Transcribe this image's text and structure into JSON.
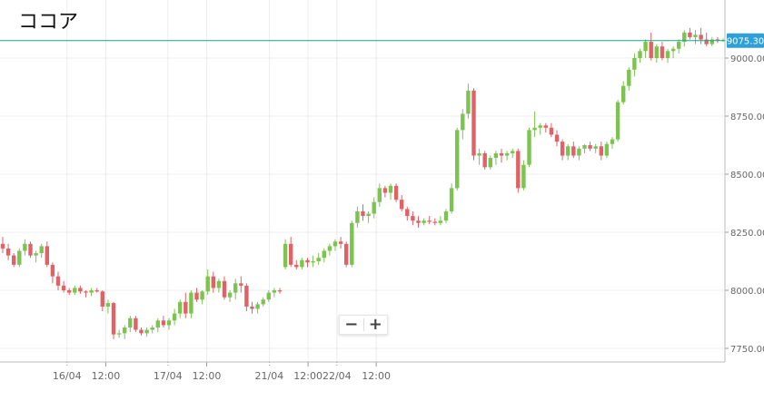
{
  "title": "ココア",
  "zoom": {
    "minus": "−",
    "plus": "+"
  },
  "colors": {
    "up": "#7cc350",
    "down": "#e06266",
    "grid": "#ececec",
    "axis": "#666666",
    "price_line": "#17a589",
    "price_tag_bg": "#2f9fd8"
  },
  "chart_data": {
    "type": "candlestick",
    "title": "ココア",
    "current_price": 9075.3,
    "current_price_label": "9075.30",
    "y_ticks": [
      "7750.00",
      "8000.00",
      "8250.00",
      "8500.00",
      "8750.00",
      "9000.00"
    ],
    "y_tick_values": [
      7750,
      8000,
      8250,
      8500,
      8750,
      9000
    ],
    "ylim": [
      7720,
      9160
    ],
    "x_labels": [
      {
        "label": "16/04",
        "t": 11.6,
        "dotted": true
      },
      {
        "label": "12:00",
        "t": 18.6,
        "dotted": false
      },
      {
        "label": "17/04",
        "t": 29.8,
        "dotted": true
      },
      {
        "label": "12:00",
        "t": 36.8,
        "dotted": false
      },
      {
        "label": "21/04",
        "t": 48.1,
        "dotted": true
      },
      {
        "label": "12:00",
        "t": 55.1,
        "dotted": false
      },
      {
        "label": "22/04",
        "t": 60.3,
        "dotted": true
      },
      {
        "label": "12:00",
        "t": 67.4,
        "dotted": false
      }
    ],
    "candles_note": "each candle: [open, high, low, close], one per hour",
    "candles": [
      [
        8200,
        8230,
        8160,
        8180
      ],
      [
        8180,
        8200,
        8130,
        8150
      ],
      [
        8150,
        8160,
        8100,
        8110
      ],
      [
        8110,
        8180,
        8100,
        8170
      ],
      [
        8170,
        8220,
        8150,
        8200
      ],
      [
        8200,
        8210,
        8140,
        8150
      ],
      [
        8150,
        8170,
        8120,
        8160
      ],
      [
        8160,
        8200,
        8140,
        8190
      ],
      [
        8190,
        8210,
        8100,
        8110
      ],
      [
        8110,
        8120,
        8030,
        8060
      ],
      [
        8060,
        8080,
        8000,
        8020
      ],
      [
        8020,
        8040,
        7990,
        8000
      ],
      [
        8000,
        8010,
        7980,
        7990
      ],
      [
        7990,
        8020,
        7980,
        8010
      ],
      [
        8010,
        8020,
        7985,
        7995
      ],
      [
        7995,
        8000,
        7970,
        7990
      ],
      [
        7990,
        8010,
        7975,
        8000
      ],
      [
        8000,
        8010,
        7990,
        7995
      ],
      [
        7995,
        8000,
        7910,
        7930
      ],
      [
        7930,
        7960,
        7900,
        7945
      ],
      [
        7945,
        7950,
        7790,
        7810
      ],
      [
        7810,
        7830,
        7795,
        7815
      ],
      [
        7815,
        7850,
        7790,
        7840
      ],
      [
        7840,
        7890,
        7820,
        7880
      ],
      [
        7880,
        7890,
        7820,
        7830
      ],
      [
        7830,
        7840,
        7805,
        7815
      ],
      [
        7815,
        7840,
        7800,
        7830
      ],
      [
        7830,
        7850,
        7815,
        7840
      ],
      [
        7840,
        7880,
        7820,
        7870
      ],
      [
        7870,
        7890,
        7840,
        7850
      ],
      [
        7850,
        7880,
        7830,
        7870
      ],
      [
        7870,
        7920,
        7850,
        7900
      ],
      [
        7900,
        7960,
        7880,
        7950
      ],
      [
        7950,
        7990,
        7880,
        7900
      ],
      [
        7900,
        8000,
        7880,
        7990
      ],
      [
        7990,
        8010,
        7950,
        7960
      ],
      [
        7960,
        8000,
        7940,
        7995
      ],
      [
        7995,
        8090,
        7980,
        8060
      ],
      [
        8060,
        8080,
        7990,
        8010
      ],
      [
        8010,
        8050,
        7990,
        8040
      ],
      [
        8040,
        8060,
        7960,
        7970
      ],
      [
        7970,
        8000,
        7950,
        7990
      ],
      [
        7990,
        8050,
        7960,
        8030
      ],
      [
        8030,
        8060,
        7990,
        8020
      ],
      [
        8020,
        8030,
        7910,
        7930
      ],
      [
        7930,
        7950,
        7900,
        7920
      ],
      [
        7920,
        7950,
        7900,
        7940
      ],
      [
        7940,
        7970,
        7930,
        7960
      ],
      [
        7960,
        8000,
        7950,
        7990
      ],
      [
        7990,
        8010,
        7970,
        8000
      ],
      [
        8000,
        8010,
        7985,
        7995
      ],
      [
        8100,
        8220,
        8090,
        8200
      ],
      [
        8200,
        8230,
        8100,
        8110
      ],
      [
        8110,
        8130,
        8090,
        8100
      ],
      [
        8100,
        8140,
        8090,
        8130
      ],
      [
        8130,
        8140,
        8100,
        8120
      ],
      [
        8120,
        8150,
        8100,
        8125
      ],
      [
        8125,
        8160,
        8110,
        8140
      ],
      [
        8140,
        8180,
        8120,
        8170
      ],
      [
        8170,
        8200,
        8150,
        8190
      ],
      [
        8190,
        8220,
        8170,
        8210
      ],
      [
        8210,
        8230,
        8180,
        8200
      ],
      [
        8200,
        8210,
        8100,
        8110
      ],
      [
        8110,
        8300,
        8100,
        8290
      ],
      [
        8290,
        8360,
        8270,
        8340
      ],
      [
        8340,
        8370,
        8300,
        8320
      ],
      [
        8320,
        8340,
        8290,
        8330
      ],
      [
        8330,
        8400,
        8310,
        8380
      ],
      [
        8380,
        8460,
        8360,
        8440
      ],
      [
        8440,
        8450,
        8400,
        8420
      ],
      [
        8420,
        8460,
        8390,
        8450
      ],
      [
        8450,
        8460,
        8380,
        8390
      ],
      [
        8390,
        8410,
        8340,
        8350
      ],
      [
        8350,
        8360,
        8300,
        8320
      ],
      [
        8320,
        8340,
        8280,
        8300
      ],
      [
        8300,
        8320,
        8270,
        8290
      ],
      [
        8290,
        8310,
        8280,
        8300
      ],
      [
        8300,
        8320,
        8285,
        8295
      ],
      [
        8295,
        8310,
        8280,
        8290
      ],
      [
        8290,
        8320,
        8280,
        8300
      ],
      [
        8300,
        8350,
        8290,
        8340
      ],
      [
        8340,
        8460,
        8330,
        8440
      ],
      [
        8440,
        8700,
        8430,
        8690
      ],
      [
        8690,
        8780,
        8650,
        8760
      ],
      [
        8760,
        8890,
        8740,
        8860
      ],
      [
        8860,
        8870,
        8560,
        8580
      ],
      [
        8580,
        8610,
        8540,
        8590
      ],
      [
        8590,
        8600,
        8520,
        8530
      ],
      [
        8530,
        8580,
        8520,
        8570
      ],
      [
        8570,
        8600,
        8540,
        8590
      ],
      [
        8590,
        8610,
        8550,
        8580
      ],
      [
        8580,
        8600,
        8560,
        8590
      ],
      [
        8590,
        8610,
        8570,
        8600
      ],
      [
        8600,
        8610,
        8420,
        8440
      ],
      [
        8440,
        8560,
        8430,
        8540
      ],
      [
        8540,
        8700,
        8530,
        8690
      ],
      [
        8690,
        8770,
        8660,
        8700
      ],
      [
        8700,
        8720,
        8670,
        8710
      ],
      [
        8710,
        8720,
        8680,
        8700
      ],
      [
        8700,
        8720,
        8660,
        8670
      ],
      [
        8670,
        8690,
        8620,
        8640
      ],
      [
        8640,
        8650,
        8560,
        8580
      ],
      [
        8580,
        8630,
        8560,
        8620
      ],
      [
        8620,
        8640,
        8570,
        8580
      ],
      [
        8580,
        8620,
        8560,
        8610
      ],
      [
        8610,
        8630,
        8590,
        8625
      ],
      [
        8625,
        8640,
        8600,
        8610
      ],
      [
        8610,
        8630,
        8590,
        8620
      ],
      [
        8620,
        8640,
        8560,
        8580
      ],
      [
        8580,
        8640,
        8570,
        8630
      ],
      [
        8630,
        8660,
        8610,
        8650
      ],
      [
        8650,
        8820,
        8640,
        8810
      ],
      [
        8810,
        8900,
        8800,
        8880
      ],
      [
        8880,
        8960,
        8860,
        8950
      ],
      [
        8950,
        9020,
        8920,
        9000
      ],
      [
        9000,
        9040,
        8980,
        9030
      ],
      [
        9030,
        9080,
        9000,
        9070
      ],
      [
        9070,
        9110,
        8990,
        9000
      ],
      [
        9000,
        9060,
        8980,
        9050
      ],
      [
        9050,
        9070,
        8990,
        9000
      ],
      [
        9000,
        9040,
        8980,
        9030
      ],
      [
        9030,
        9050,
        9000,
        9040
      ],
      [
        9040,
        9080,
        9020,
        9070
      ],
      [
        9070,
        9120,
        9050,
        9110
      ],
      [
        9110,
        9130,
        9080,
        9090
      ],
      [
        9090,
        9120,
        9060,
        9100
      ],
      [
        9100,
        9130,
        9060,
        9080
      ],
      [
        9080,
        9110,
        9050,
        9060
      ],
      [
        9060,
        9090,
        9050,
        9080
      ],
      [
        9080,
        9090,
        9065,
        9075
      ],
      [
        9075,
        9085,
        9070,
        9078
      ]
    ]
  }
}
